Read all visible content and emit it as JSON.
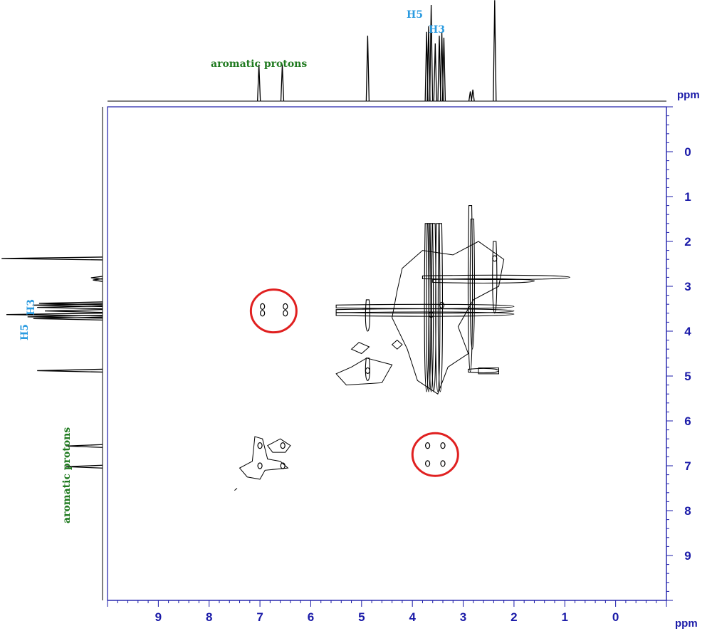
{
  "chart_data": {
    "type": "heatmap",
    "subtype": "2D NMR contour spectrum with 1D projections",
    "title": "",
    "xlabel": "ppm",
    "ylabel": "ppm",
    "x_ticks": [
      "9",
      "8",
      "7",
      "6",
      "5",
      "4",
      "3",
      "2",
      "1",
      "0"
    ],
    "y_ticks": [
      "0",
      "1",
      "2",
      "3",
      "4",
      "5",
      "6",
      "7",
      "8",
      "9"
    ],
    "xlim": [
      10,
      -1
    ],
    "ylim": [
      -1,
      10
    ],
    "top_projection_labels": {
      "aromatic": "aromatic protons",
      "h5": "H5",
      "h3": "H3"
    },
    "left_projection_labels": {
      "aromatic": "aromatic protons",
      "h5": "H5",
      "h3": "H3"
    },
    "projection_peaks": [
      {
        "ppm": 7.02,
        "height": 0.38
      },
      {
        "ppm": 6.56,
        "height": 0.38
      },
      {
        "ppm": 4.88,
        "height": 0.68
      },
      {
        "ppm": 3.72,
        "height": 0.72
      },
      {
        "ppm": 3.68,
        "height": 0.78
      },
      {
        "ppm": 3.63,
        "height": 1.0
      },
      {
        "ppm": 3.55,
        "height": 0.6
      },
      {
        "ppm": 3.47,
        "height": 0.68
      },
      {
        "ppm": 3.42,
        "height": 0.72
      },
      {
        "ppm": 3.38,
        "height": 0.66
      },
      {
        "ppm": 2.86,
        "height": 0.1
      },
      {
        "ppm": 2.81,
        "height": 0.12
      },
      {
        "ppm": 2.38,
        "height": 1.05
      }
    ],
    "cross_peaks": [
      {
        "x": 6.95,
        "y": 3.45
      },
      {
        "x": 6.95,
        "y": 3.6
      },
      {
        "x": 6.5,
        "y": 3.45
      },
      {
        "x": 6.5,
        "y": 3.6
      },
      {
        "x": 3.7,
        "y": 6.55
      },
      {
        "x": 3.4,
        "y": 6.55
      },
      {
        "x": 3.7,
        "y": 6.95
      },
      {
        "x": 3.4,
        "y": 6.95
      },
      {
        "x": 7.0,
        "y": 7.0
      },
      {
        "x": 6.55,
        "y": 6.55
      },
      {
        "x": 7.0,
        "y": 6.55
      },
      {
        "x": 6.55,
        "y": 7.0
      },
      {
        "x": 4.88,
        "y": 4.88
      },
      {
        "x": 3.63,
        "y": 3.63
      },
      {
        "x": 3.42,
        "y": 3.42
      },
      {
        "x": 2.38,
        "y": 2.38
      }
    ],
    "highlight_circles": [
      {
        "x": 6.73,
        "y": 3.55
      },
      {
        "x": 3.55,
        "y": 6.75
      }
    ],
    "grid": false,
    "colors": {
      "axis": "#1a1aa8",
      "contour": "#000000",
      "highlight": "#e02020"
    }
  }
}
